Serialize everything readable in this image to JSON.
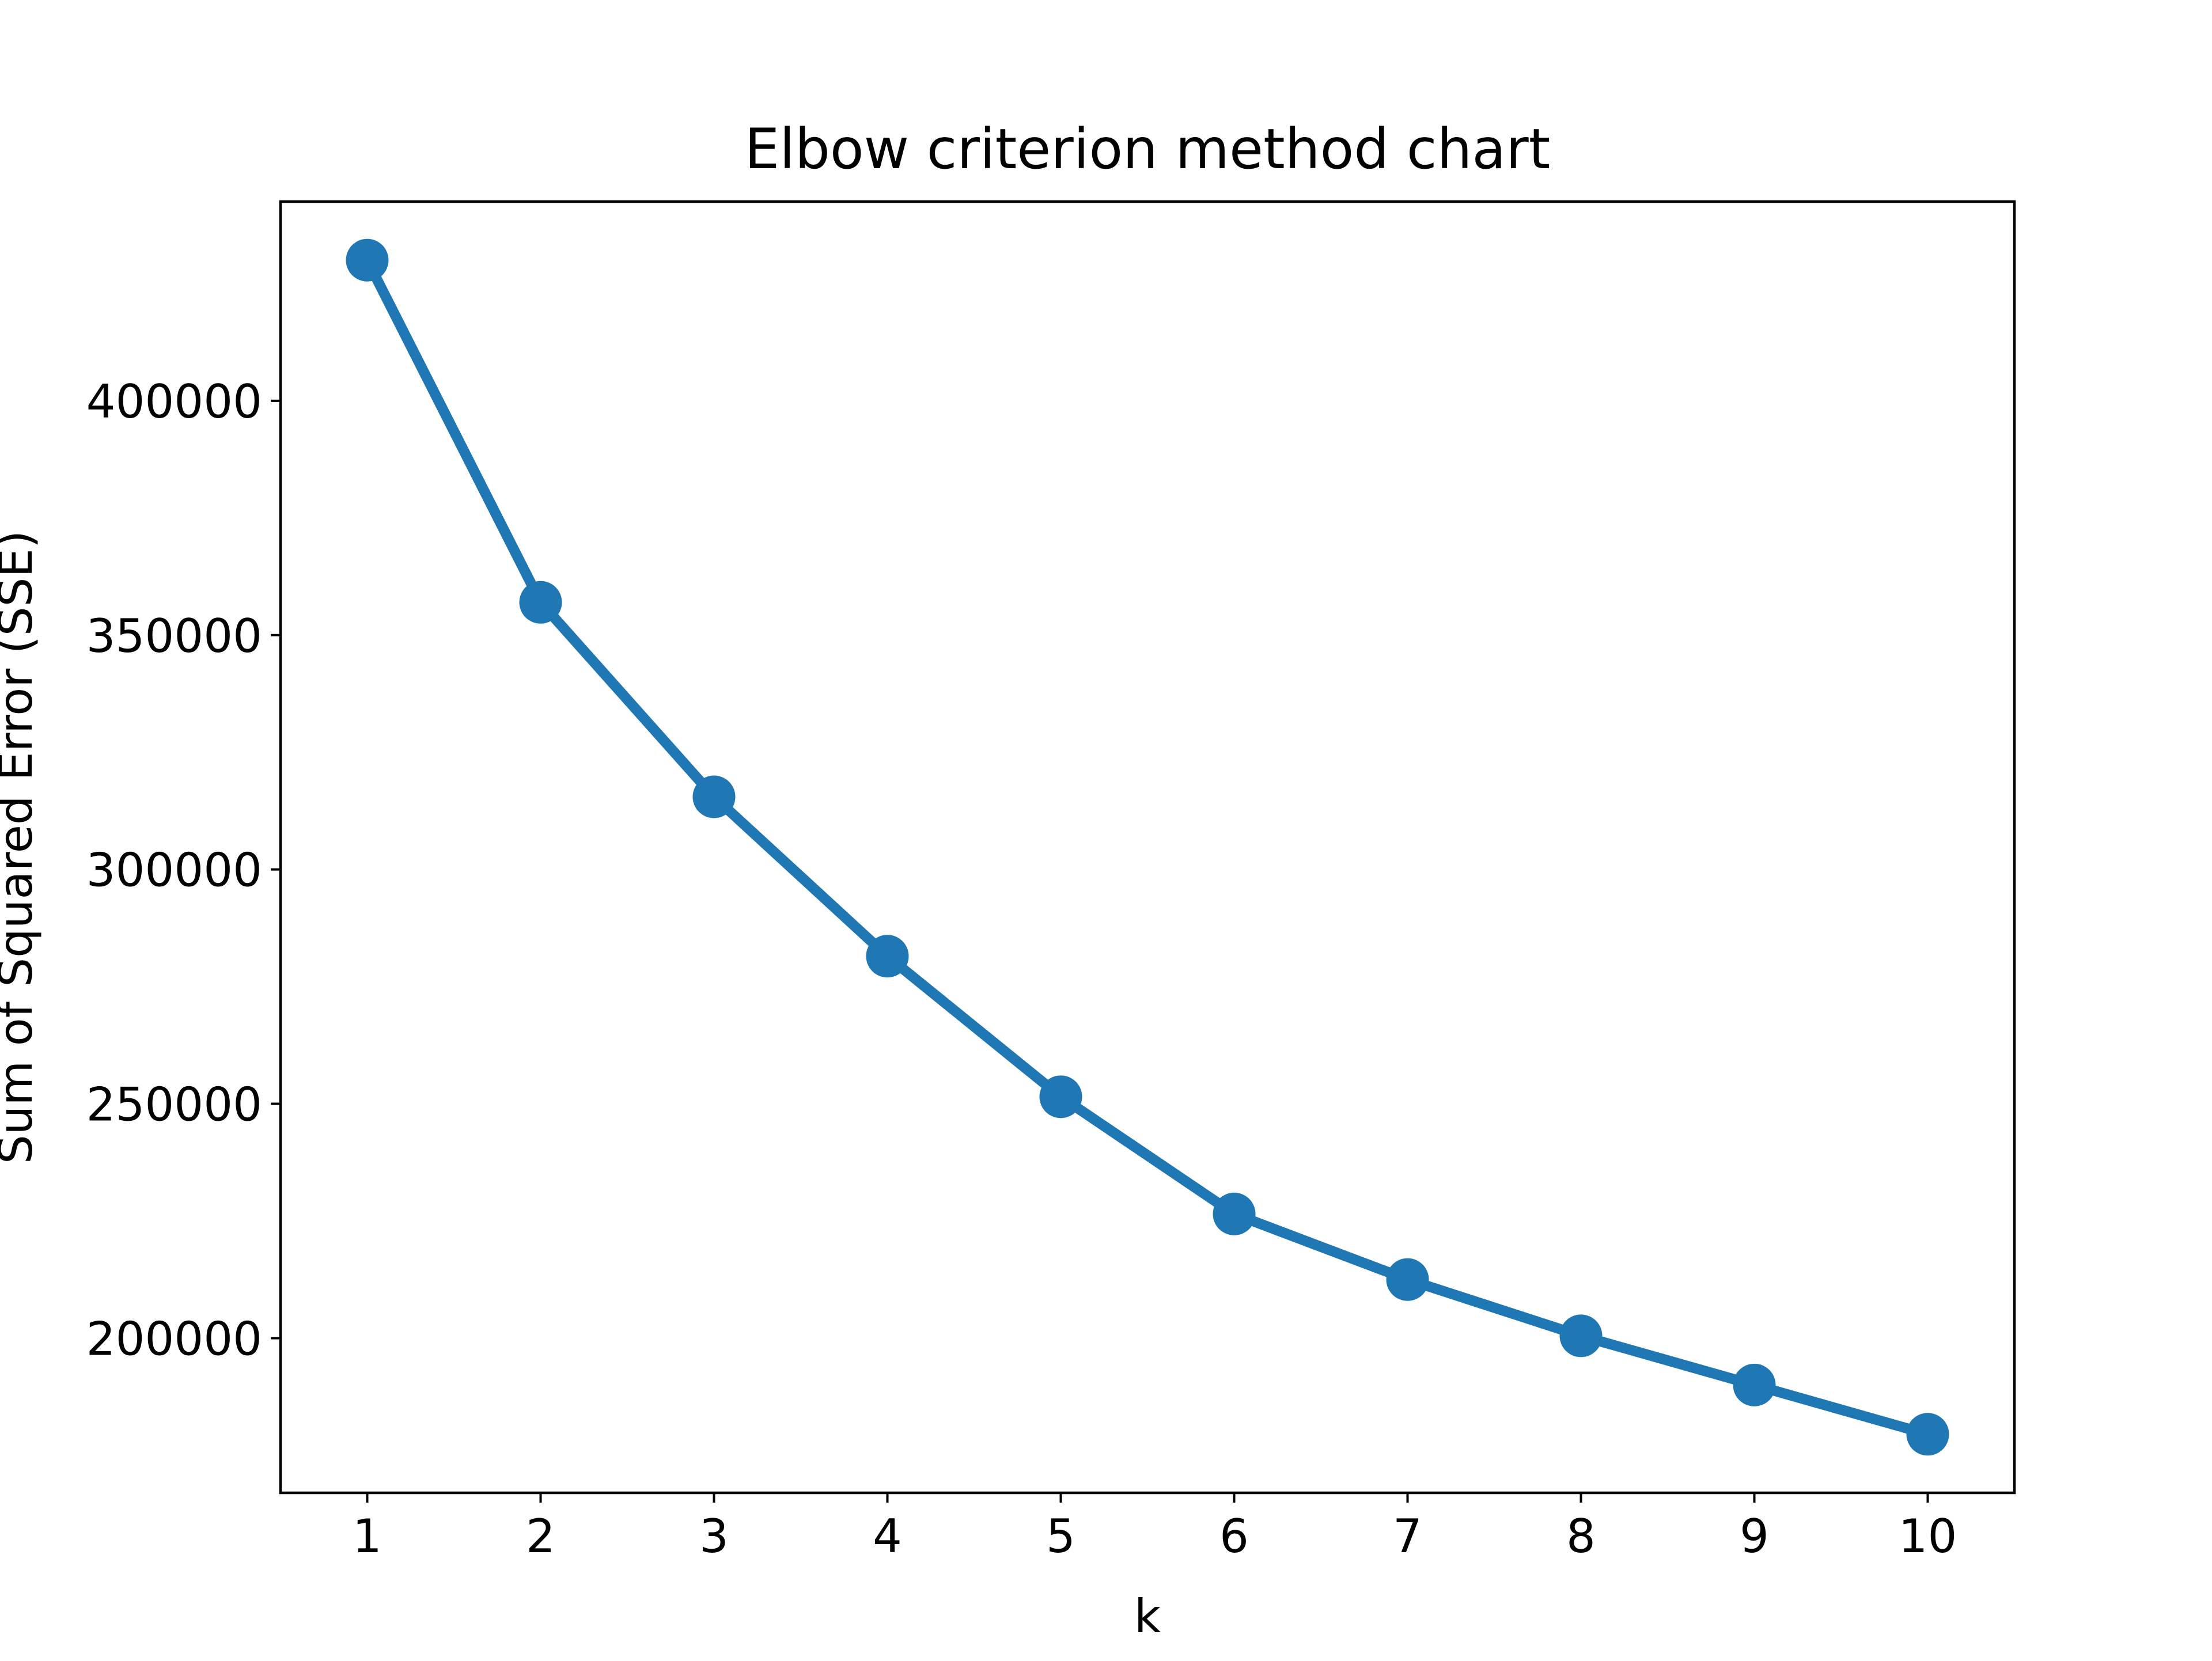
{
  "chart_data": {
    "type": "line",
    "title": "Elbow criterion method chart",
    "xlabel": "k",
    "ylabel": "Sum of Squared Error (SSE)",
    "x": [
      1,
      2,
      3,
      4,
      5,
      6,
      7,
      8,
      9,
      10
    ],
    "y": [
      430000,
      357000,
      315500,
      281500,
      251500,
      226500,
      212500,
      200500,
      190000,
      179500
    ],
    "xlim": [
      0.5,
      10.5
    ],
    "ylim": [
      167000,
      442500
    ],
    "xticks": [
      1,
      2,
      3,
      4,
      5,
      6,
      7,
      8,
      9,
      10
    ],
    "xtick_labels": [
      "1",
      "2",
      "3",
      "4",
      "5",
      "6",
      "7",
      "8",
      "9",
      "10"
    ],
    "yticks": [
      200000,
      250000,
      300000,
      350000,
      400000
    ],
    "ytick_labels": [
      "200000",
      "250000",
      "300000",
      "350000",
      "400000"
    ],
    "grid": false,
    "marker": "circle",
    "line_color": "#1f77b4"
  }
}
